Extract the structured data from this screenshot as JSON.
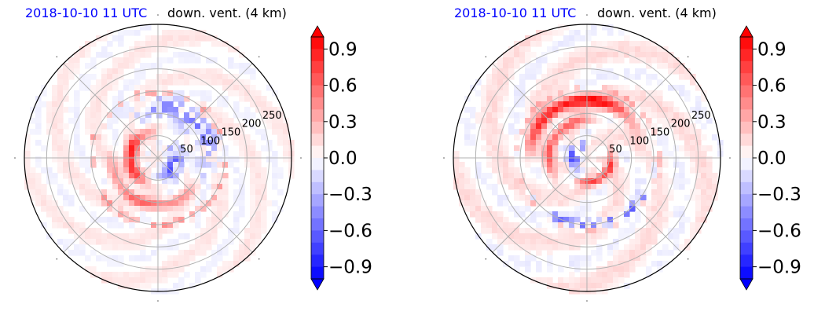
{
  "chart_data": [
    {
      "type": "heatmap",
      "projection": "polar",
      "title_left": "2018-10-10 11 UTC",
      "title_right": "down. vent. (4 km)",
      "title_left_color": "#0000ff",
      "radial_ticks": [
        "50",
        "100",
        "150",
        "200",
        "250"
      ],
      "radial_lim": [
        0,
        300
      ],
      "grid": true,
      "colormap": "bwr",
      "colorbar": {
        "vmin": -1.0,
        "vmax": 1.0,
        "extend": "both",
        "ticks": [
          "0.9",
          "0.6",
          "0.3",
          "0.0",
          "−0.3",
          "−0.6",
          "−0.9"
        ],
        "tick_values": [
          0.9,
          0.6,
          0.3,
          0.0,
          -0.3,
          -0.6,
          -0.9
        ]
      }
    },
    {
      "type": "heatmap",
      "projection": "polar",
      "title_left": "2018-10-10 11 UTC",
      "title_right": "down. vent. (4 km)",
      "title_left_color": "#0000ff",
      "radial_ticks": [
        "50",
        "100",
        "150",
        "200",
        "250"
      ],
      "radial_lim": [
        0,
        300
      ],
      "grid": true,
      "colormap": "bwr",
      "colorbar": {
        "vmin": -1.0,
        "vmax": 1.0,
        "extend": "both",
        "ticks": [
          "0.9",
          "0.6",
          "0.3",
          "0.0",
          "−0.3",
          "−0.6",
          "−0.9"
        ],
        "tick_values": [
          0.9,
          0.6,
          0.3,
          0.0,
          -0.3,
          -0.6,
          -0.9
        ]
      }
    }
  ]
}
